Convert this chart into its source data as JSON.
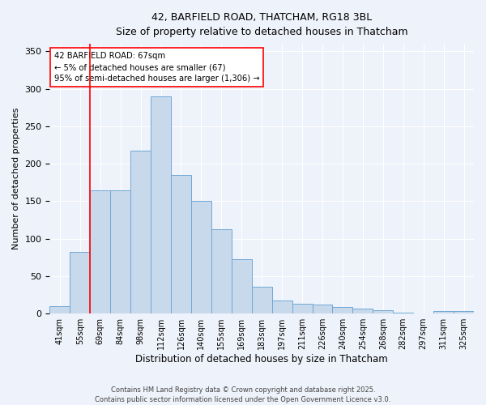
{
  "title_line1": "42, BARFIELD ROAD, THATCHAM, RG18 3BL",
  "title_line2": "Size of property relative to detached houses in Thatcham",
  "xlabel": "Distribution of detached houses by size in Thatcham",
  "ylabel": "Number of detached properties",
  "categories": [
    "41sqm",
    "55sqm",
    "69sqm",
    "84sqm",
    "98sqm",
    "112sqm",
    "126sqm",
    "140sqm",
    "155sqm",
    "169sqm",
    "183sqm",
    "197sqm",
    "211sqm",
    "226sqm",
    "240sqm",
    "254sqm",
    "268sqm",
    "282sqm",
    "297sqm",
    "311sqm",
    "325sqm"
  ],
  "values": [
    10,
    82,
    165,
    165,
    217,
    290,
    185,
    150,
    113,
    73,
    36,
    17,
    13,
    12,
    9,
    7,
    5,
    1,
    0,
    4,
    4
  ],
  "bar_color": "#c9d9ec",
  "bar_edge_color": "#6fa8d6",
  "vline_color": "red",
  "vline_x_index": 2,
  "annotation_text_line1": "42 BARFIELD ROAD: 67sqm",
  "annotation_text_line2": "← 5% of detached houses are smaller (67)",
  "annotation_text_line3": "95% of semi-detached houses are larger (1,306) →",
  "ylim": [
    0,
    360
  ],
  "yticks": [
    0,
    50,
    100,
    150,
    200,
    250,
    300,
    350
  ],
  "footer_line1": "Contains HM Land Registry data © Crown copyright and database right 2025.",
  "footer_line2": "Contains public sector information licensed under the Open Government Licence v3.0.",
  "bg_color": "#eef2fa",
  "grid_color": "white"
}
